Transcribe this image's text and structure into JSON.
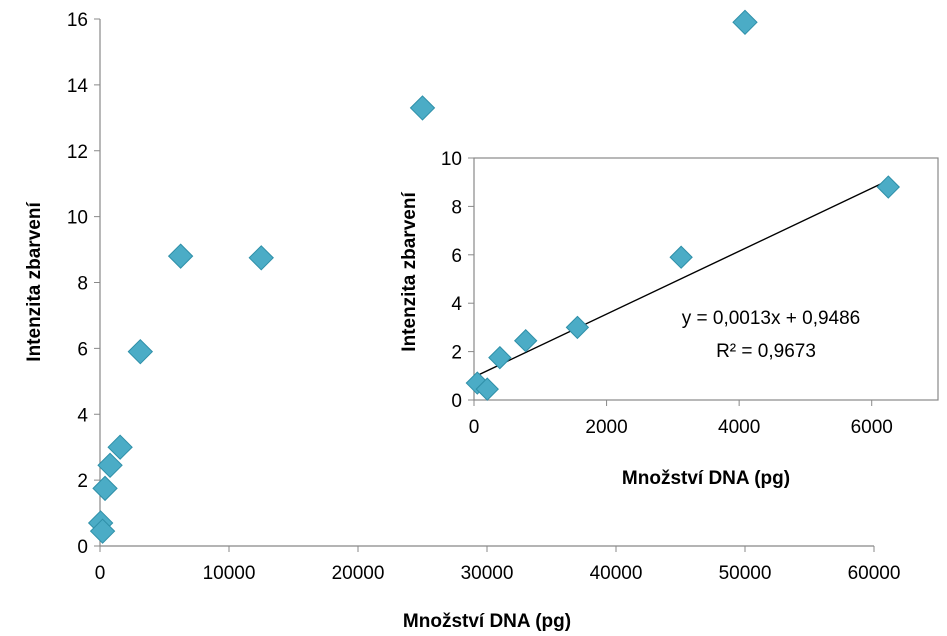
{
  "colors": {
    "marker": "#4bacc6",
    "marker_edge": "#2e8fa8",
    "axis": "#888888",
    "trendline": "#000000"
  },
  "chart_data": [
    {
      "type": "scatter",
      "xlabel": "Množství DNA (pg)",
      "ylabel": "Intenzita zbarvení",
      "xlim": [
        0,
        60000
      ],
      "ylim": [
        0,
        16
      ],
      "xticks": [
        "0",
        "10000",
        "20000",
        "30000",
        "40000",
        "50000",
        "60000"
      ],
      "yticks": [
        "0",
        "2",
        "4",
        "6",
        "8",
        "10",
        "12",
        "14",
        "16"
      ],
      "xtick_values": [
        0,
        10000,
        20000,
        30000,
        40000,
        50000,
        60000
      ],
      "ytick_values": [
        0,
        2,
        4,
        6,
        8,
        10,
        12,
        14,
        16
      ],
      "grid": false,
      "legend": "none",
      "marker": "diamond",
      "points": [
        {
          "x": 50,
          "y": 0.7
        },
        {
          "x": 200,
          "y": 0.45
        },
        {
          "x": 390,
          "y": 1.75
        },
        {
          "x": 780,
          "y": 2.45
        },
        {
          "x": 1560,
          "y": 3.0
        },
        {
          "x": 3125,
          "y": 5.9
        },
        {
          "x": 6250,
          "y": 8.8
        },
        {
          "x": 12500,
          "y": 8.75
        },
        {
          "x": 25000,
          "y": 13.3
        },
        {
          "x": 50000,
          "y": 15.9
        }
      ]
    },
    {
      "type": "scatter",
      "xlabel": "Množství DNA (pg)",
      "ylabel": "Intenzita zbarvení",
      "xlim": [
        0,
        7000
      ],
      "ylim": [
        0,
        10
      ],
      "xticks": [
        "0",
        "2000",
        "4000",
        "6000"
      ],
      "yticks": [
        "0",
        "2",
        "4",
        "6",
        "8",
        "10"
      ],
      "xtick_values": [
        0,
        2000,
        4000,
        6000
      ],
      "ytick_values": [
        0,
        2,
        4,
        6,
        8,
        10
      ],
      "grid": false,
      "legend": "none",
      "marker": "diamond",
      "points": [
        {
          "x": 50,
          "y": 0.7
        },
        {
          "x": 200,
          "y": 0.45
        },
        {
          "x": 390,
          "y": 1.75
        },
        {
          "x": 780,
          "y": 2.45
        },
        {
          "x": 1560,
          "y": 3.0
        },
        {
          "x": 3125,
          "y": 5.9
        },
        {
          "x": 6250,
          "y": 8.8
        }
      ],
      "trendline": {
        "type": "linear",
        "slope": 0.0013,
        "intercept": 0.9486,
        "x_range": [
          0,
          6250
        ],
        "equation": "y = 0,0013x + 0,9486",
        "r_squared": "R² = 0,9673"
      }
    }
  ]
}
